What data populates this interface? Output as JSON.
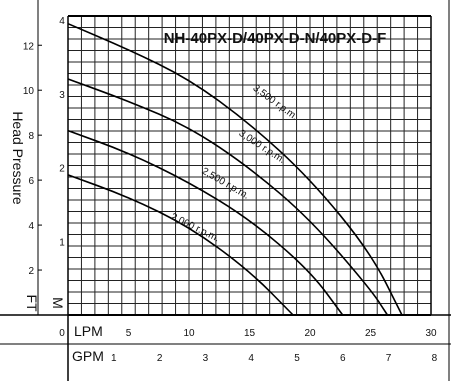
{
  "chart_data": {
    "type": "line",
    "title": "NH-40PX-D/40PX-D-N/40PX-D-F",
    "head_label": "Head Pressure",
    "ft_unit": "FT",
    "m_unit": "M",
    "lpm_unit": "LPM",
    "gpm_unit": "GPM",
    "x_lpm_ticks": [
      "0",
      "5",
      "10",
      "15",
      "20",
      "25",
      "30"
    ],
    "x_gpm_ticks": [
      "1",
      "2",
      "3",
      "4",
      "5",
      "6",
      "7",
      "8"
    ],
    "y_ft_ticks": [
      "2",
      "4",
      "6",
      "8",
      "10",
      "12"
    ],
    "y_m_ticks": [
      "1",
      "2",
      "3",
      "4"
    ],
    "xlim": [
      0,
      30
    ],
    "ylim_m": [
      0,
      4
    ],
    "grid": true,
    "series": [
      {
        "name": "3,500 r.p.m.",
        "x": [
          0,
          5,
          10,
          15,
          20,
          25,
          27.6
        ],
        "y": [
          3.95,
          3.6,
          3.2,
          2.6,
          1.85,
          0.85,
          0.0
        ]
      },
      {
        "name": "3,000 r.p.m.",
        "x": [
          0,
          5,
          10,
          15,
          20,
          25,
          26.4
        ],
        "y": [
          3.2,
          2.9,
          2.55,
          2.0,
          1.3,
          0.35,
          0.0
        ]
      },
      {
        "name": "2,500 r.p.m.",
        "x": [
          0,
          5,
          10,
          15,
          20,
          22.7
        ],
        "y": [
          2.5,
          2.2,
          1.8,
          1.3,
          0.6,
          0.0
        ]
      },
      {
        "name": "2,000 r.p.m.",
        "x": [
          0,
          5,
          10,
          15,
          18.6
        ],
        "y": [
          1.9,
          1.6,
          1.2,
          0.6,
          0.0
        ]
      }
    ]
  }
}
